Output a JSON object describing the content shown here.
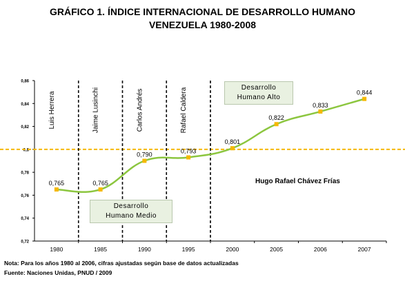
{
  "chart_data": {
    "type": "line",
    "title": "GRÁFICO 1. ÍNDICE INTERNACIONAL DE DESARROLLO HUMANO",
    "subtitle": "VENEZUELA 1980-2008",
    "xlabel": "",
    "ylabel": "",
    "categories": [
      "1980",
      "1985",
      "1990",
      "1995",
      "2000",
      "2005",
      "2006",
      "2007"
    ],
    "series": [
      {
        "values": [
          0.765,
          0.765,
          0.79,
          0.793,
          0.801,
          0.822,
          0.833,
          0.844
        ],
        "color": "#8cc63f",
        "marker_color": "#f5b800"
      }
    ],
    "data_labels": [
      "0,765",
      "0,765",
      "0,790",
      "0,793",
      "0,801",
      "0,822",
      "0,833",
      "0,844"
    ],
    "yticks": [
      "0,72",
      "0,74",
      "0,76",
      "0,78",
      "0,8",
      "0,82",
      "0,84",
      "0,86"
    ],
    "ylim": [
      0.72,
      0.86
    ],
    "grid": false,
    "threshold": {
      "value": 0.8,
      "color": "#f5b800",
      "style": "dashed"
    },
    "period_dividers": [
      1982.5,
      1987.5,
      1992.5,
      1997.5
    ],
    "period_labels": [
      "Luis Herrera",
      "Jaime Lusinchi",
      "Carlos Andrés",
      "Rafael Caldera"
    ],
    "annotations": {
      "alto_line1": "Desarrollo",
      "alto_line2": "Humano Alto",
      "medio_line1": "Desarrollo",
      "medio_line2": "Humano Medio",
      "chavez": "Hugo Rafael Chávez Frías"
    }
  },
  "footer": {
    "note": "Nota: Para los años 1980 al 2006, cifras ajustadas según base de datos actualizadas",
    "source": "Fuente: Naciones  Unidas, PNUD / 2009"
  }
}
